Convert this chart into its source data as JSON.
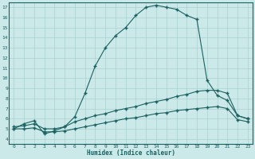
{
  "xlabel": "Humidex (Indice chaleur)",
  "bg_color": "#cce9e9",
  "grid_color": "#aad0d0",
  "line_color": "#1a6060",
  "spine_color": "#1a6060",
  "xlim": [
    -0.5,
    23.5
  ],
  "ylim": [
    3.5,
    17.5
  ],
  "xticks": [
    0,
    1,
    2,
    3,
    4,
    5,
    6,
    7,
    8,
    9,
    10,
    11,
    12,
    13,
    14,
    15,
    16,
    17,
    18,
    19,
    20,
    21,
    22,
    23
  ],
  "yticks": [
    4,
    5,
    6,
    7,
    8,
    9,
    10,
    11,
    12,
    13,
    14,
    15,
    16,
    17
  ],
  "line1_x": [
    0,
    1,
    2,
    3,
    4,
    5,
    6,
    7,
    8,
    9,
    10,
    11,
    12,
    13,
    14,
    15,
    16,
    17,
    18,
    19,
    20,
    21,
    22,
    23
  ],
  "line1_y": [
    5.0,
    5.5,
    5.8,
    4.5,
    4.8,
    5.2,
    6.2,
    8.5,
    11.2,
    13.0,
    14.2,
    15.0,
    16.2,
    17.0,
    17.2,
    17.0,
    16.8,
    16.2,
    15.8,
    9.8,
    8.3,
    7.8,
    6.3,
    6.0
  ],
  "line2_x": [
    0,
    1,
    2,
    3,
    4,
    5,
    6,
    7,
    8,
    9,
    10,
    11,
    12,
    13,
    14,
    15,
    16,
    17,
    18,
    19,
    20,
    21,
    22,
    23
  ],
  "line2_y": [
    5.2,
    5.3,
    5.5,
    5.0,
    5.0,
    5.2,
    5.7,
    6.0,
    6.3,
    6.5,
    6.8,
    7.0,
    7.2,
    7.5,
    7.7,
    7.9,
    8.2,
    8.4,
    8.7,
    8.8,
    8.8,
    8.5,
    6.3,
    6.0
  ],
  "line3_x": [
    0,
    1,
    2,
    3,
    4,
    5,
    6,
    7,
    8,
    9,
    10,
    11,
    12,
    13,
    14,
    15,
    16,
    17,
    18,
    19,
    20,
    21,
    22,
    23
  ],
  "line3_y": [
    5.0,
    5.0,
    5.1,
    4.7,
    4.7,
    4.8,
    5.0,
    5.2,
    5.4,
    5.6,
    5.8,
    6.0,
    6.1,
    6.3,
    6.5,
    6.6,
    6.8,
    6.9,
    7.0,
    7.1,
    7.2,
    7.0,
    5.9,
    5.7
  ],
  "marker": "+",
  "markersize": 3.5,
  "linewidth": 0.8
}
